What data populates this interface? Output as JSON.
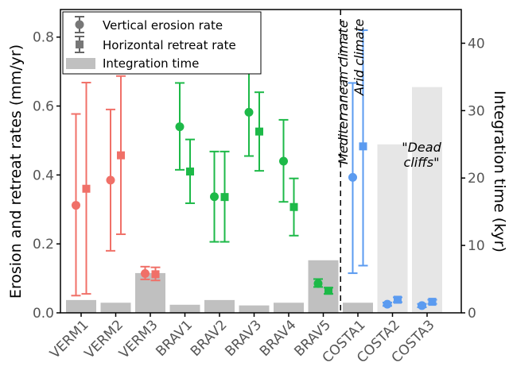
{
  "chart_data": {
    "type": "bar+errorbar",
    "categories": [
      "VERM1",
      "VERM2",
      "VERM3",
      "BRAV1",
      "BRAV2",
      "BRAV3",
      "BRAV4",
      "BRAV5",
      "COSTA1",
      "COSTA2",
      "COSTA3"
    ],
    "category_colors": [
      "#f07068",
      "#f07068",
      "#f07068",
      "#1db948",
      "#1db948",
      "#1db948",
      "#1db948",
      "#1db948",
      "#5b9bf0",
      "#5b9bf0",
      "#5b9bf0"
    ],
    "ylabel": "Erosion and retreat rates (mm/yr)",
    "y2label": "Integration time (kyr)",
    "ylim": [
      0,
      0.88
    ],
    "y2lim": [
      0,
      45
    ],
    "yticks": [
      0.0,
      0.2,
      0.4,
      0.6,
      0.8
    ],
    "y2ticks": [
      0,
      10,
      20,
      30,
      40
    ],
    "series": [
      {
        "name": "Integration time",
        "kind": "bar",
        "axis": "right",
        "color": "#c0c0c0",
        "values": [
          1.9,
          1.5,
          5.9,
          1.2,
          1.9,
          1.1,
          1.5,
          7.8,
          1.5,
          25.0,
          33.5
        ]
      },
      {
        "name": "Vertical erosion rate",
        "kind": "circle",
        "axis": "left",
        "values": [
          0.312,
          0.385,
          0.114,
          0.54,
          0.337,
          0.582,
          0.44,
          0.085,
          0.393,
          0.025,
          0.021
        ],
        "lower": [
          0.05,
          0.18,
          0.097,
          0.415,
          0.206,
          0.455,
          0.322,
          0.075,
          0.115,
          0.02,
          0.016
        ],
        "upper": [
          0.577,
          0.59,
          0.134,
          0.667,
          0.468,
          0.71,
          0.56,
          0.098,
          0.667,
          0.03,
          0.026
        ]
      },
      {
        "name": "Horizontal retreat rate",
        "kind": "square",
        "axis": "left",
        "values": [
          0.36,
          0.457,
          0.112,
          0.41,
          0.336,
          0.526,
          0.307,
          0.064,
          0.483,
          0.038,
          0.032
        ],
        "lower": [
          0.055,
          0.228,
          0.094,
          0.318,
          0.206,
          0.412,
          0.224,
          0.055,
          0.137,
          0.031,
          0.026
        ],
        "upper": [
          0.668,
          0.687,
          0.132,
          0.503,
          0.468,
          0.64,
          0.39,
          0.073,
          0.82,
          0.045,
          0.038
        ]
      }
    ],
    "legend": {
      "position": "top-left",
      "entries": [
        "Vertical erosion rate",
        "Horizontal retreat rate",
        "Integration time"
      ]
    },
    "annotations": {
      "divider_after_category": "BRAV5",
      "left_label": "Mediterranean climate",
      "right_label": "Arid climate",
      "dead_cliffs_line1": "\"Dead",
      "dead_cliffs_line2": "cliffs\""
    },
    "bar_highlight": [
      "COSTA2",
      "COSTA3"
    ],
    "bar_highlight_color": "#e6e6e6"
  }
}
